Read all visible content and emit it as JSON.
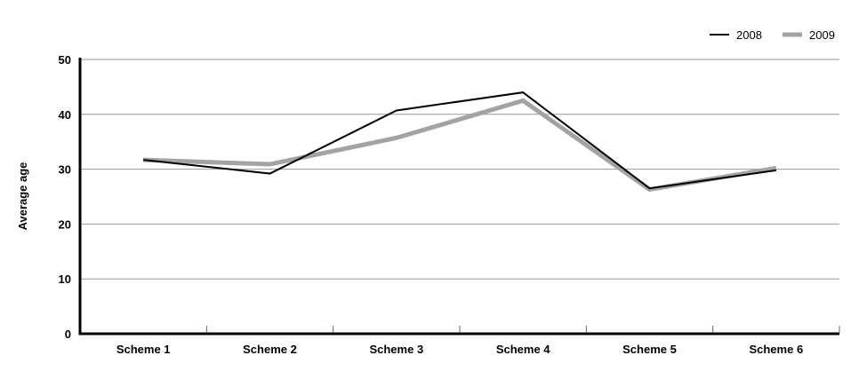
{
  "chart_data": {
    "type": "line",
    "title": "",
    "ylabel": "Average age",
    "xlabel": "",
    "categories": [
      "Scheme 1",
      "Scheme 2",
      "Scheme 3",
      "Scheme 4",
      "Scheme 5",
      "Scheme 6"
    ],
    "series": [
      {
        "name": "2008",
        "color": "#000000",
        "stroke_width": 2,
        "values": [
          31.7,
          29.2,
          40.7,
          44.0,
          26.5,
          29.8
        ]
      },
      {
        "name": "2009",
        "color": "#a3a3a3",
        "stroke_width": 5,
        "values": [
          31.7,
          30.9,
          35.7,
          42.5,
          26.3,
          30.2
        ]
      }
    ],
    "ylim": [
      0,
      50
    ],
    "yticks": [
      0,
      10,
      20,
      30,
      40,
      50
    ],
    "grid": true,
    "gridline_color": "#999999",
    "axis_color": "#000000",
    "legend_position": "top-right",
    "background_color": "#ffffff"
  }
}
